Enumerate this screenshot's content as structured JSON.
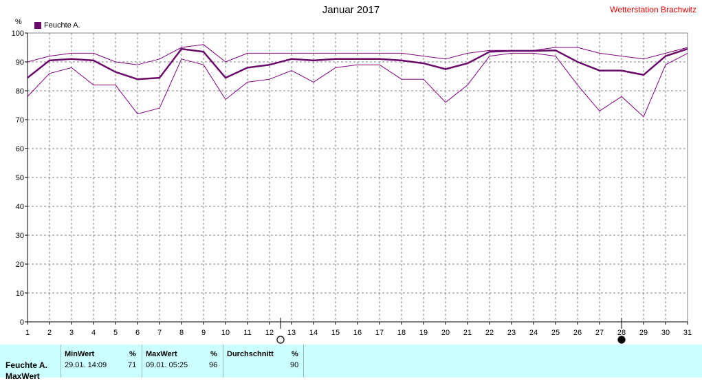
{
  "chart_data": {
    "type": "line",
    "title": "Januar 2017",
    "station": "Wetterstation Brachwitz",
    "unit": "%",
    "legend": "Feuchte A.",
    "x": [
      1,
      2,
      3,
      4,
      5,
      6,
      7,
      8,
      9,
      10,
      11,
      12,
      13,
      14,
      15,
      16,
      17,
      18,
      19,
      20,
      21,
      22,
      23,
      24,
      25,
      26,
      27,
      28,
      29,
      30,
      31
    ],
    "ylim": [
      0,
      100
    ],
    "yticks": [
      0,
      10,
      20,
      30,
      40,
      50,
      60,
      70,
      80,
      90,
      100
    ],
    "grid": true,
    "series": [
      {
        "name": "",
        "role": "max",
        "color": "#800080",
        "values": [
          90,
          92,
          93,
          93,
          90,
          89,
          91,
          95,
          96,
          90,
          93,
          93,
          93,
          93,
          93,
          93,
          93,
          93,
          92,
          91,
          93,
          94,
          94,
          94,
          95,
          95,
          93,
          92,
          91,
          93,
          95
        ]
      },
      {
        "name": "",
        "role": "avg",
        "color": "#6a0a6a",
        "values": [
          84.5,
          90.5,
          91,
          90.5,
          86.5,
          84,
          84.5,
          94.5,
          93.5,
          84.5,
          88,
          89,
          91,
          90.5,
          91,
          91,
          91,
          90.5,
          89.5,
          87.5,
          89.5,
          93.5,
          93.8,
          93.8,
          94,
          90,
          87,
          87,
          85.5,
          92,
          94.5
        ]
      },
      {
        "name": "",
        "role": "min",
        "color": "#800080",
        "values": [
          78,
          86,
          88,
          82,
          82,
          72,
          74,
          91,
          89,
          77,
          83,
          84,
          87,
          83,
          88,
          89,
          89,
          84,
          84,
          76,
          82,
          92,
          93,
          93,
          92,
          82,
          73,
          78,
          71,
          89,
          93
        ]
      }
    ],
    "markers": [
      {
        "x": 12.5,
        "symbol": "open-circle"
      },
      {
        "x": 28,
        "symbol": "filled-circle"
      }
    ]
  },
  "stats": {
    "row_label": "Feuchte A.",
    "row_label2": "MaxWert",
    "min_header": "MinWert",
    "min_unit": "%",
    "min_time": "29.01.  14:09",
    "min_value": "71",
    "max_header": "MaxWert",
    "max_unit": "%",
    "max_time": "09.01.  05:25",
    "max_value": "96",
    "avg_header": "Durchschnitt",
    "avg_unit": "%",
    "avg_value": "90"
  }
}
